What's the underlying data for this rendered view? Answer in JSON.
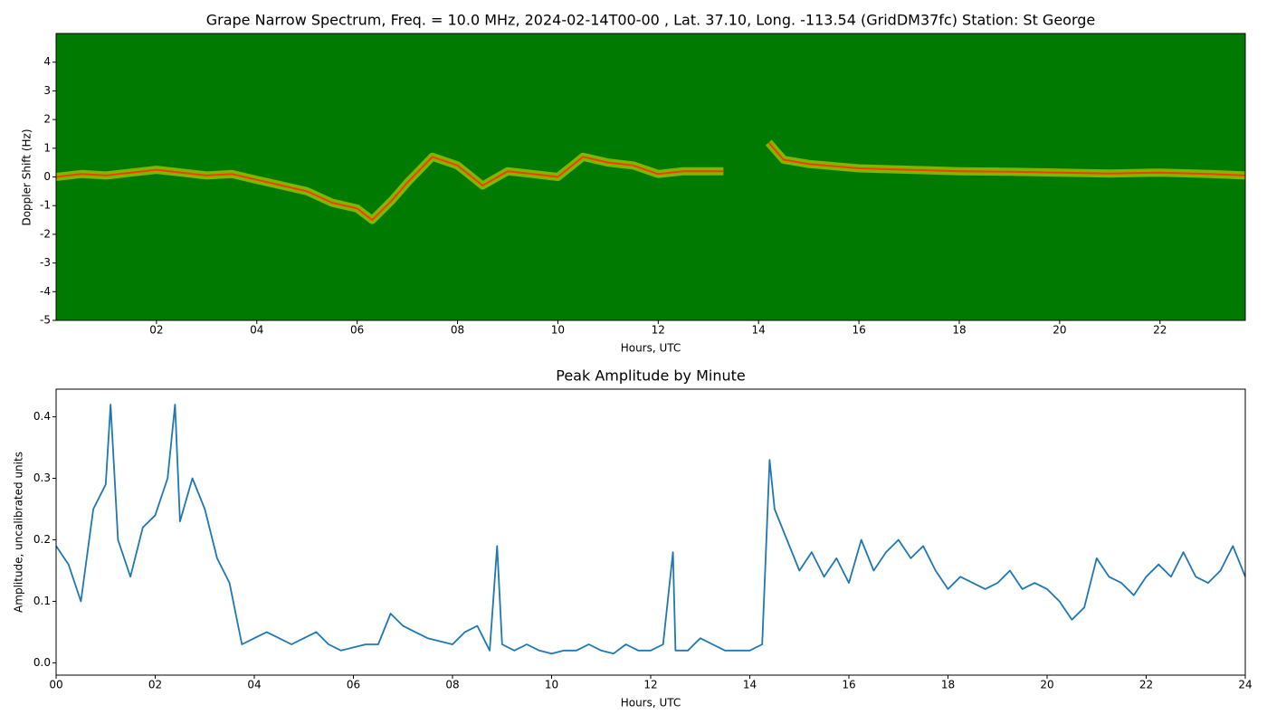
{
  "chart_data": [
    {
      "type": "spectrogram",
      "title": "Grape Narrow Spectrum, Freq. = 10.0 MHz, 2024-02-14T00-00 , Lat.  37.10, Long. -113.54 (GridDM37fc) Station: St George",
      "xlabel": "Hours, UTC",
      "ylabel": "Doppler Shift (Hz)",
      "xlim": [
        0,
        23.7
      ],
      "ylim": [
        -5,
        5
      ],
      "xticks": [
        {
          "value": 2,
          "label": "02"
        },
        {
          "value": 4,
          "label": "04"
        },
        {
          "value": 6,
          "label": "06"
        },
        {
          "value": 8,
          "label": "08"
        },
        {
          "value": 10,
          "label": "10"
        },
        {
          "value": 12,
          "label": "12"
        },
        {
          "value": 14,
          "label": "14"
        },
        {
          "value": 16,
          "label": "16"
        },
        {
          "value": 18,
          "label": "18"
        },
        {
          "value": 20,
          "label": "20"
        },
        {
          "value": 22,
          "label": "22"
        }
      ],
      "yticks": [
        -5,
        -4,
        -3,
        -2,
        -1,
        0,
        1,
        2,
        3,
        4
      ],
      "background_color": "#007a00",
      "glow_color": "#e8e800",
      "color": "#ff3a00",
      "x": [
        0,
        0.5,
        1,
        1.5,
        2,
        2.5,
        3,
        3.5,
        4,
        4.5,
        5,
        5.5,
        6,
        6.3,
        6.7,
        7,
        7.5,
        8,
        8.5,
        9,
        9.5,
        10,
        10.5,
        11,
        11.5,
        12,
        12.5,
        13.3,
        13.7,
        14.2,
        14.5,
        15,
        16,
        17,
        18,
        19,
        20,
        21,
        22,
        23,
        23.7
      ],
      "values": [
        0,
        0.1,
        0.05,
        0.15,
        0.25,
        0.15,
        0.05,
        0.1,
        -0.1,
        -0.3,
        -0.5,
        -0.9,
        -1.1,
        -1.5,
        -0.8,
        -0.2,
        0.7,
        0.4,
        -0.3,
        0.2,
        0.1,
        0,
        0.7,
        0.5,
        0.4,
        0.1,
        0.2,
        0.2,
        null,
        1.2,
        0.6,
        0.45,
        0.3,
        0.25,
        0.2,
        0.18,
        0.15,
        0.12,
        0.15,
        0.1,
        0.05
      ]
    },
    {
      "type": "line",
      "title": "Peak Amplitude by Minute",
      "xlabel": "Hours, UTC",
      "ylabel": "Amplitude, uncalibrated units",
      "xlim": [
        0,
        24
      ],
      "ylim": [
        -0.02,
        0.445
      ],
      "xticks": [
        {
          "value": 0,
          "label": "00"
        },
        {
          "value": 2,
          "label": "02"
        },
        {
          "value": 4,
          "label": "04"
        },
        {
          "value": 6,
          "label": "06"
        },
        {
          "value": 8,
          "label": "08"
        },
        {
          "value": 10,
          "label": "10"
        },
        {
          "value": 12,
          "label": "12"
        },
        {
          "value": 14,
          "label": "14"
        },
        {
          "value": 16,
          "label": "16"
        },
        {
          "value": 18,
          "label": "18"
        },
        {
          "value": 20,
          "label": "20"
        },
        {
          "value": 22,
          "label": "22"
        },
        {
          "value": 24,
          "label": "24"
        }
      ],
      "yticks": [
        {
          "value": 0,
          "label": "0.0"
        },
        0.1,
        0.2,
        0.3,
        0.4
      ],
      "color": "#1f77b4",
      "x": [
        0,
        0.25,
        0.5,
        0.75,
        1,
        1.1,
        1.25,
        1.5,
        1.75,
        2,
        2.25,
        2.4,
        2.5,
        2.75,
        3,
        3.25,
        3.5,
        3.75,
        4,
        4.25,
        4.5,
        4.75,
        5,
        5.25,
        5.5,
        5.75,
        6,
        6.25,
        6.5,
        6.75,
        7,
        7.25,
        7.5,
        7.75,
        8,
        8.25,
        8.5,
        8.75,
        8.9,
        9,
        9.25,
        9.5,
        9.75,
        10,
        10.25,
        10.5,
        10.75,
        11,
        11.25,
        11.5,
        11.75,
        12,
        12.25,
        12.45,
        12.5,
        12.75,
        13,
        13.25,
        13.5,
        13.75,
        14,
        14.25,
        14.4,
        14.5,
        14.75,
        15,
        15.25,
        15.5,
        15.75,
        16,
        16.25,
        16.5,
        16.75,
        17,
        17.25,
        17.5,
        17.75,
        18,
        18.25,
        18.5,
        18.75,
        19,
        19.25,
        19.5,
        19.75,
        20,
        20.25,
        20.5,
        20.75,
        21,
        21.25,
        21.5,
        21.75,
        22,
        22.25,
        22.5,
        22.75,
        23,
        23.25,
        23.5,
        23.75,
        24
      ],
      "values": [
        0.19,
        0.16,
        0.1,
        0.25,
        0.29,
        0.42,
        0.2,
        0.14,
        0.22,
        0.24,
        0.3,
        0.42,
        0.23,
        0.3,
        0.25,
        0.17,
        0.13,
        0.03,
        0.04,
        0.05,
        0.04,
        0.03,
        0.04,
        0.05,
        0.03,
        0.02,
        0.025,
        0.03,
        0.03,
        0.08,
        0.06,
        0.05,
        0.04,
        0.035,
        0.03,
        0.05,
        0.06,
        0.02,
        0.19,
        0.03,
        0.02,
        0.03,
        0.02,
        0.015,
        0.02,
        0.02,
        0.03,
        0.02,
        0.015,
        0.03,
        0.02,
        0.02,
        0.03,
        0.18,
        0.02,
        0.02,
        0.04,
        0.03,
        0.02,
        0.02,
        0.02,
        0.03,
        0.33,
        0.25,
        0.2,
        0.15,
        0.18,
        0.14,
        0.17,
        0.13,
        0.2,
        0.15,
        0.18,
        0.2,
        0.17,
        0.19,
        0.15,
        0.12,
        0.14,
        0.13,
        0.12,
        0.13,
        0.15,
        0.12,
        0.13,
        0.12,
        0.1,
        0.07,
        0.09,
        0.17,
        0.14,
        0.13,
        0.11,
        0.14,
        0.16,
        0.14,
        0.18,
        0.14,
        0.13,
        0.15,
        0.19,
        0.14
      ]
    }
  ]
}
